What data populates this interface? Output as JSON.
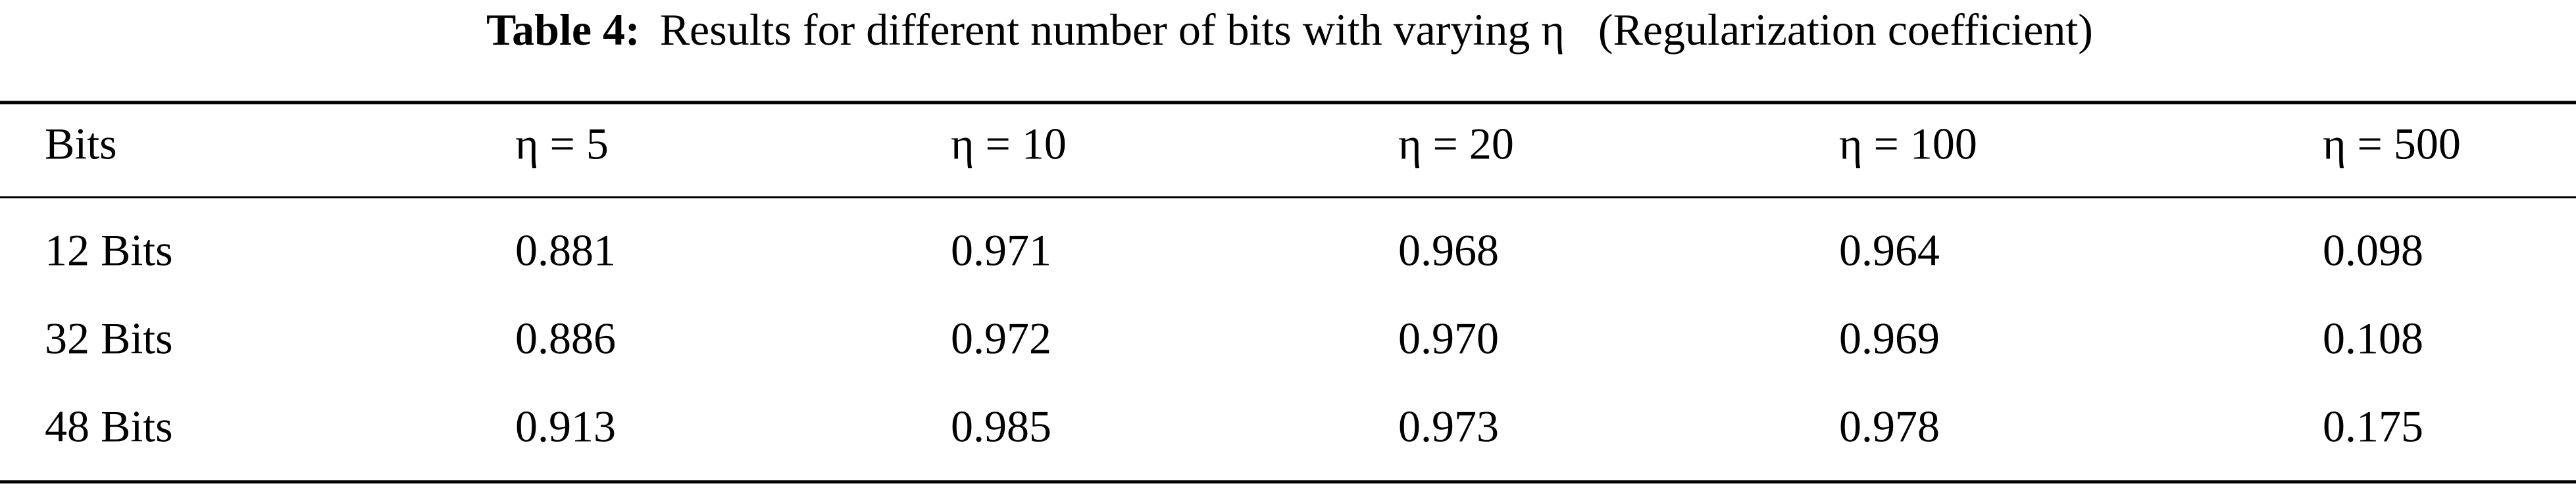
{
  "table": {
    "caption": {
      "label": "Table 4:",
      "text": "Results for different number of bits with varying η   (Regularization coefficient)"
    },
    "header": [
      "Bits",
      "η = 5",
      "η = 10",
      "η = 20",
      "η = 100",
      "η = 500"
    ],
    "rows": [
      [
        "12 Bits",
        "0.881",
        "0.971",
        "0.968",
        "0.964",
        "0.098"
      ],
      [
        "32 Bits",
        "0.886",
        "0.972",
        "0.970",
        "0.969",
        "0.108"
      ],
      [
        "48 Bits",
        "0.913",
        "0.985",
        "0.973",
        "0.978",
        "0.175"
      ]
    ]
  }
}
